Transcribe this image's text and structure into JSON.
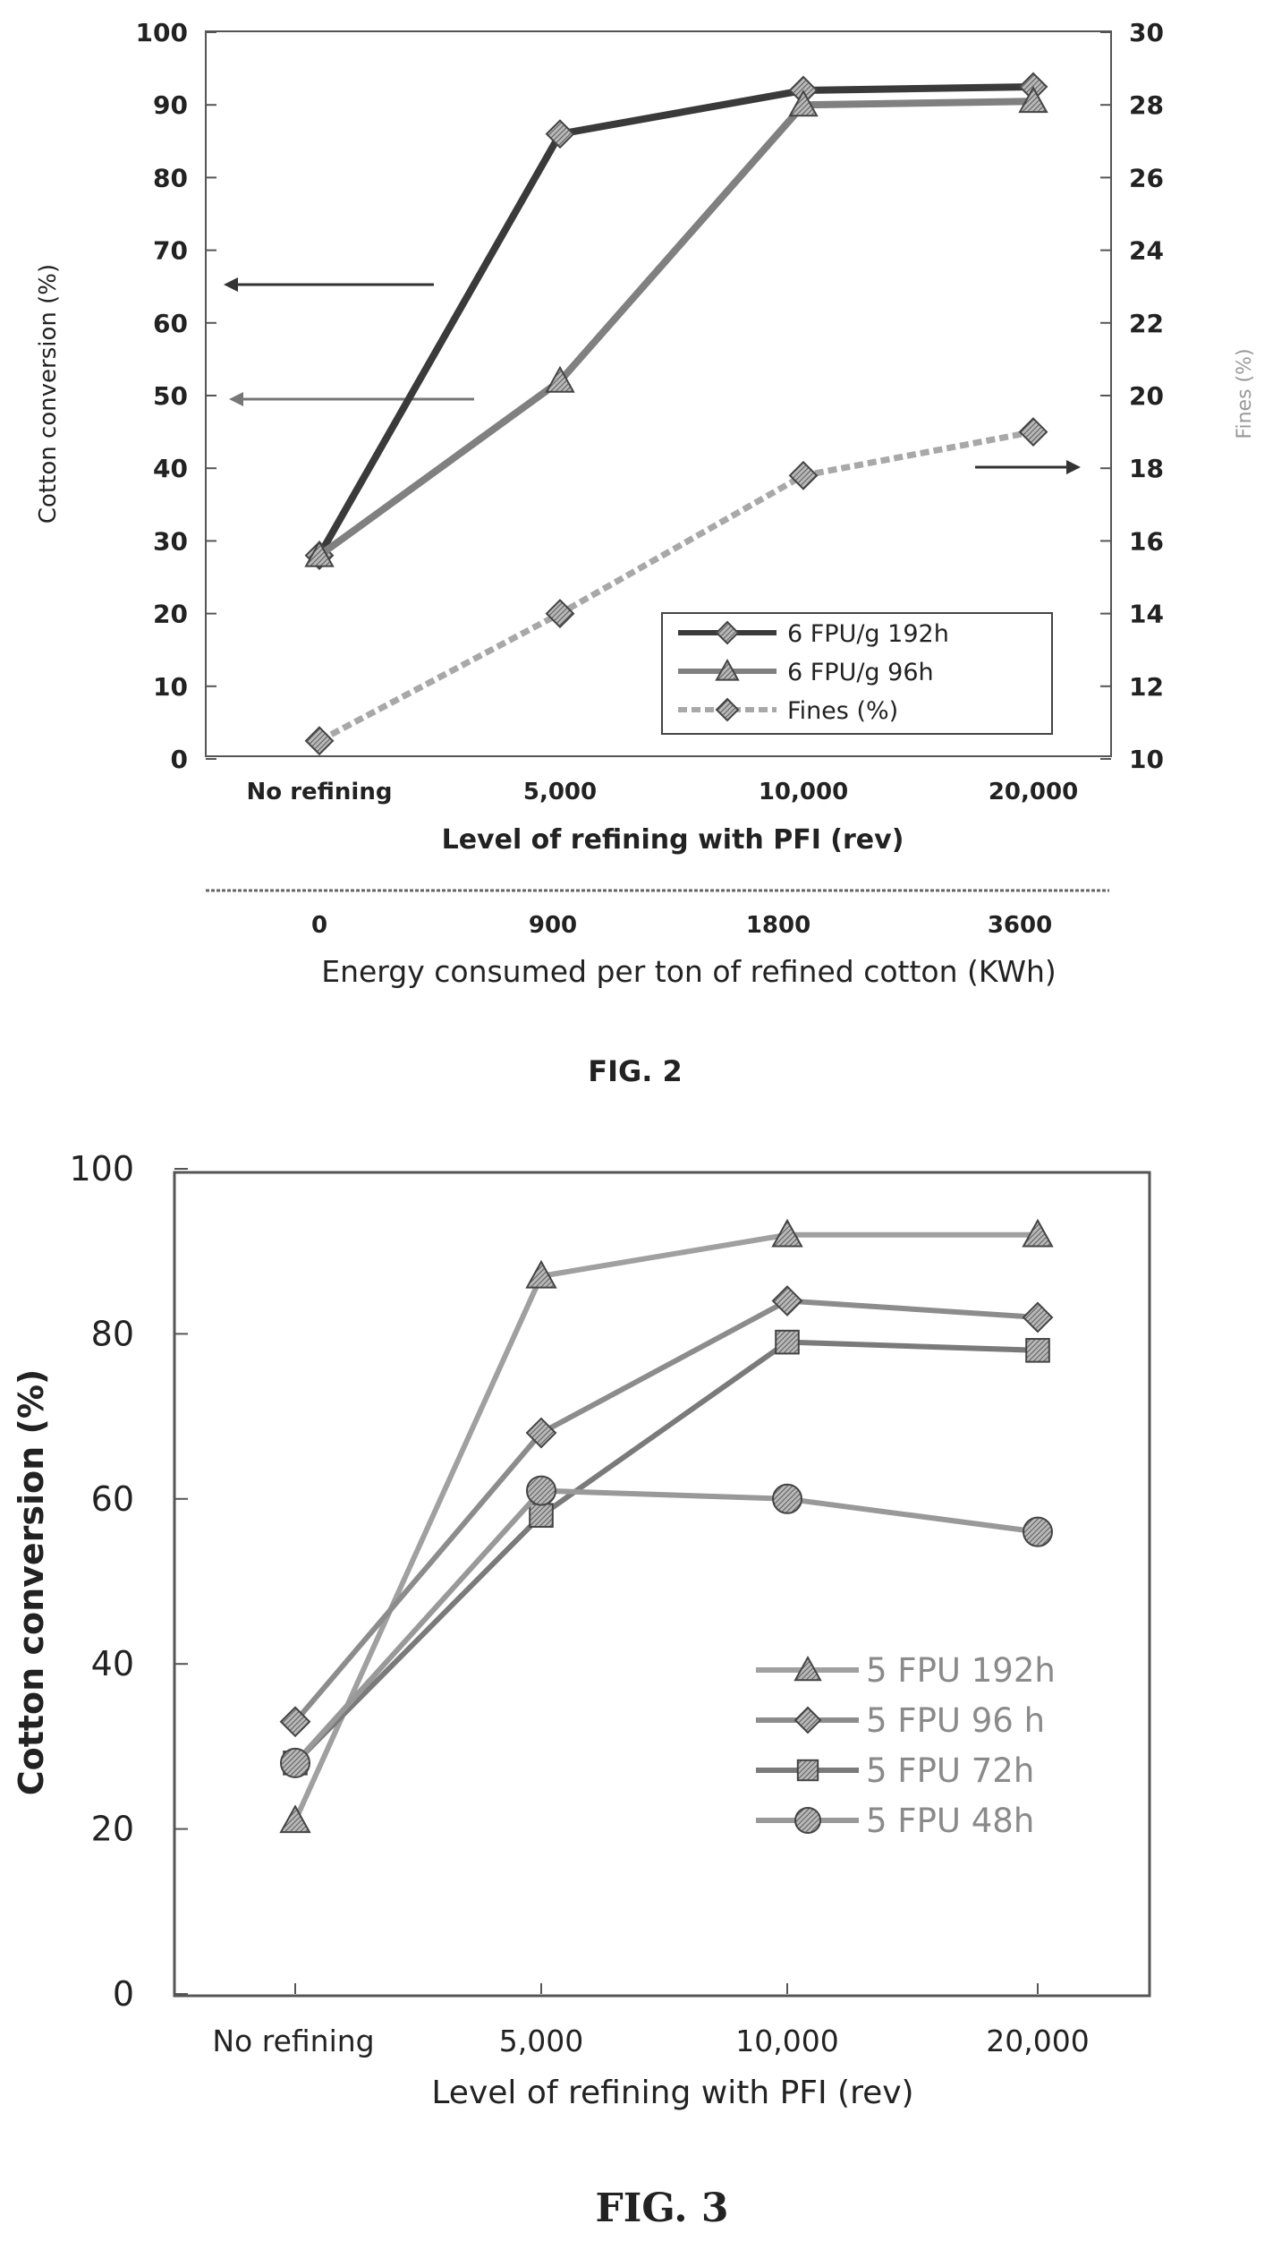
{
  "chart_data": [
    {
      "type": "line",
      "figure_label": "FIG. 2",
      "xlabel": "Level of refining with PFI (rev)",
      "categories": [
        "No refining",
        "5,000",
        "10,000",
        "20,000"
      ],
      "secondary_xlabel": "Energy consumed per ton of refined cotton (KWh)",
      "secondary_categories": [
        "0",
        "900",
        "1800",
        "3600"
      ],
      "ylabel": "Cotton conversion (%)",
      "ylim": [
        0,
        100
      ],
      "yticks": [
        "0",
        "10",
        "20",
        "30",
        "40",
        "50",
        "60",
        "70",
        "80",
        "90",
        "100"
      ],
      "y2label": "Fines (%)",
      "y2lim": [
        10,
        30
      ],
      "y2ticks": [
        "10",
        "12",
        "14",
        "16",
        "18",
        "20",
        "22",
        "24",
        "26",
        "28",
        "30"
      ],
      "series": [
        {
          "name": "6 FPU/g 192h",
          "axis": "left",
          "marker": "diamond",
          "dashed": false,
          "values": [
            28,
            86,
            92,
            92.5
          ]
        },
        {
          "name": "6 FPU/g  96h",
          "axis": "left",
          "marker": "triangle",
          "dashed": false,
          "values": [
            28,
            52,
            90,
            90.5
          ]
        },
        {
          "name": "Fines (%)",
          "axis": "right",
          "marker": "diamond",
          "dashed": true,
          "values": [
            10.5,
            14,
            17.8,
            19
          ]
        }
      ],
      "legend_position": "bottom-right",
      "grid": false
    },
    {
      "type": "line",
      "figure_label": "FIG. 3",
      "xlabel": "Level of refining with PFI (rev)",
      "categories": [
        "No refining",
        "5,000",
        "10,000",
        "20,000"
      ],
      "ylabel": "Cotton conversion (%)",
      "ylim": [
        0,
        100
      ],
      "yticks": [
        "0",
        "20",
        "40",
        "60",
        "80",
        "100"
      ],
      "series": [
        {
          "name": "5 FPU 192h",
          "marker": "triangle",
          "values": [
            21,
            87,
            92,
            92
          ]
        },
        {
          "name": "5 FPU 96 h",
          "marker": "diamond",
          "values": [
            33,
            68,
            84,
            82
          ]
        },
        {
          "name": "5 FPU 72h",
          "marker": "square",
          "values": [
            28,
            58,
            79,
            78
          ]
        },
        {
          "name": "5 FPU 48h",
          "marker": "circle",
          "values": [
            28,
            61,
            60,
            56
          ]
        }
      ],
      "legend_position": "right",
      "grid": false
    }
  ]
}
